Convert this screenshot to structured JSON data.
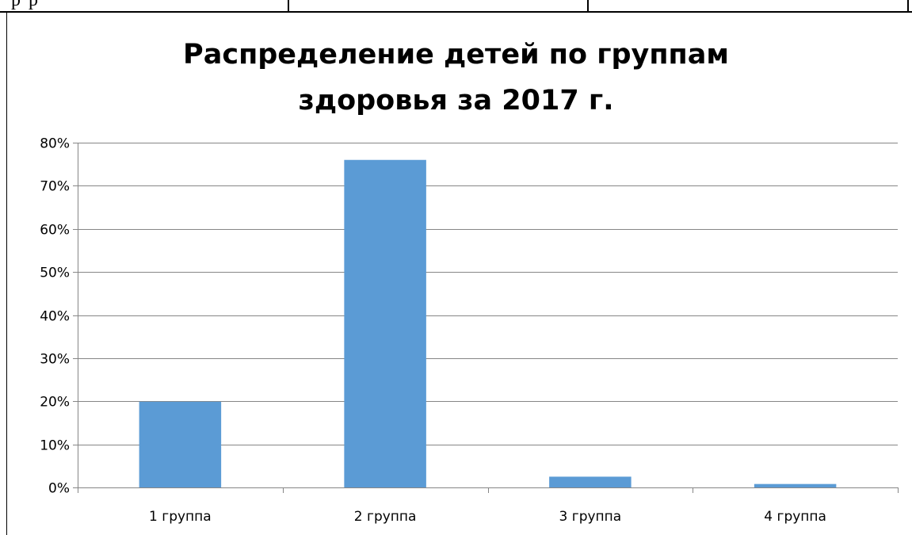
{
  "top_fragment": {
    "text": "р             р"
  },
  "chart_data": {
    "type": "bar",
    "title_lines": [
      "Распределение детей по группам",
      "здоровья за 2017 г."
    ],
    "categories": [
      "1 группа",
      "2 группа",
      "3 группа",
      "4 группа"
    ],
    "values": [
      0.199,
      0.76,
      0.025,
      0.008
    ],
    "ylim": [
      0,
      0.8
    ],
    "yticks": [
      0,
      0.1,
      0.2,
      0.3,
      0.4,
      0.5,
      0.6,
      0.7,
      0.8
    ],
    "ytick_labels": [
      "0%",
      "10%",
      "20%",
      "30%",
      "40%",
      "50%",
      "60%",
      "70%",
      "80%"
    ],
    "bar_color": "#5B9BD5",
    "gridline_color": "#868686",
    "grid": true,
    "legend": "none"
  }
}
